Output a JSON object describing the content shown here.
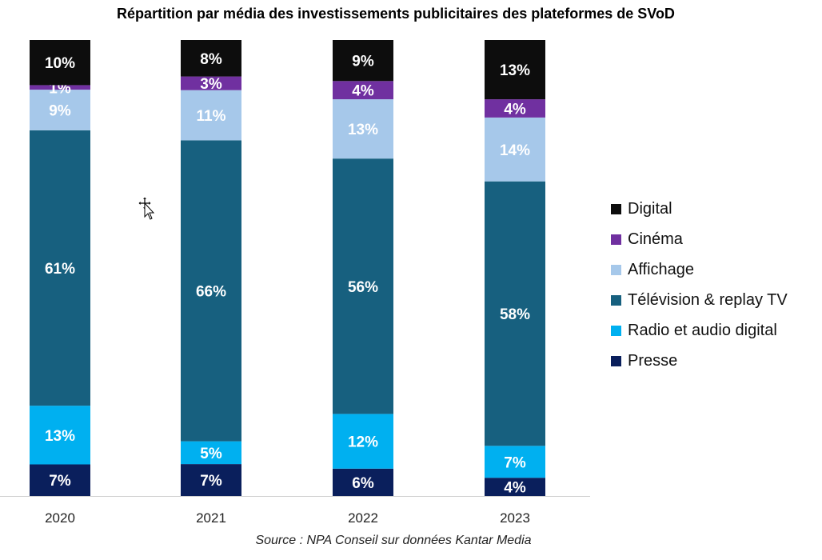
{
  "chart_data": {
    "type": "bar",
    "stacked": true,
    "title": "Répartition par média des investissements publicitaires des plateformes de SVoD",
    "source": "Source : NPA Conseil sur données Kantar Media",
    "categories": [
      "2020",
      "2021",
      "2022",
      "2023"
    ],
    "series": [
      {
        "name": "Presse",
        "color": "#0a1f5c",
        "values": [
          7,
          7,
          6,
          4
        ],
        "labels": [
          "7%",
          "7%",
          "6%",
          "4%"
        ]
      },
      {
        "name": "Radio et audio digital",
        "color": "#00b0f0",
        "values": [
          13,
          5,
          12,
          7
        ],
        "labels": [
          "13%",
          "5%",
          "12%",
          "7%"
        ]
      },
      {
        "name": "Télévision & replay TV",
        "color": "#17607f",
        "values": [
          61,
          66,
          56,
          58
        ],
        "labels": [
          "61%",
          "66%",
          "56%",
          "58%"
        ]
      },
      {
        "name": "Affichage",
        "color": "#a6c8ea",
        "values": [
          9,
          11,
          13,
          14
        ],
        "labels": [
          "9%",
          "11%",
          "13%",
          "14%"
        ]
      },
      {
        "name": "Cinéma",
        "color": "#7030a0",
        "values": [
          1,
          3,
          4,
          4
        ],
        "labels": [
          "1%",
          "3%",
          "4%",
          "4%"
        ]
      },
      {
        "name": "Digital",
        "color": "#0d0d0d",
        "values": [
          10,
          8,
          9,
          13
        ],
        "labels": [
          "10%",
          "8%",
          "9%",
          "13%"
        ]
      }
    ],
    "legend_order": [
      "Digital",
      "Cinéma",
      "Affichage",
      "Télévision & replay TV",
      "Radio et audio digital",
      "Presse"
    ],
    "legend_position": "right",
    "grid": false
  }
}
